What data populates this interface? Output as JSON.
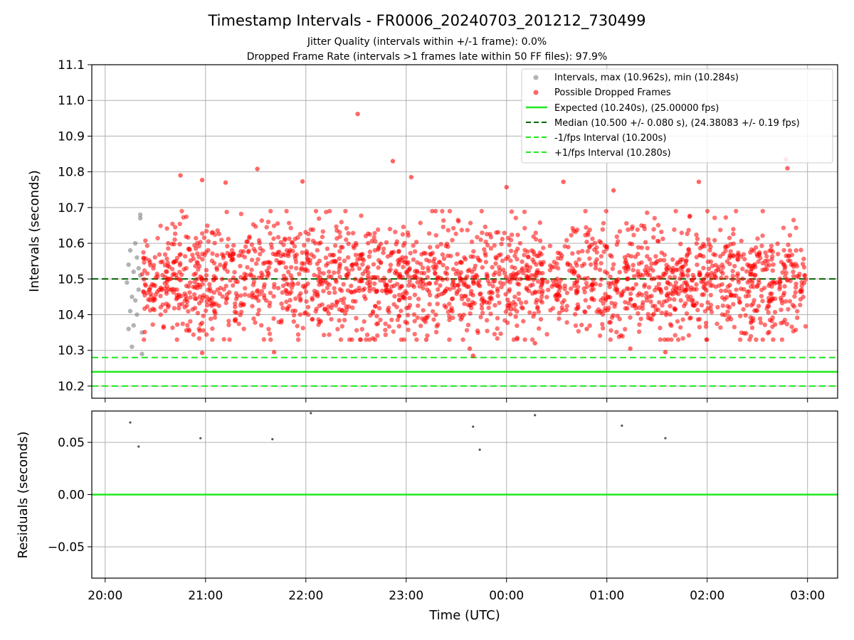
{
  "chart_data": [
    {
      "type": "scatter",
      "title": "Timestamp Intervals - FR0006_20240703_201212_730499",
      "subtitle_lines": [
        "Jitter Quality (intervals within +/-1 frame): 0.0%",
        "Dropped Frame Rate (intervals >1 frames late within 50 FF files): 97.9%"
      ],
      "xlabel": "",
      "ylabel": "Intervals (seconds)",
      "x_axis": {
        "type": "time",
        "range": [
          "2024-07-03 19:52",
          "2024-07-04 03:18"
        ],
        "ticks": [
          "2024-07-03 20:00",
          "2024-07-03 21:00",
          "2024-07-03 22:00",
          "2024-07-03 23:00",
          "2024-07-04 00:00",
          "2024-07-04 01:00",
          "2024-07-04 02:00",
          "2024-07-04 03:00"
        ]
      },
      "ylim": [
        10.166,
        11.1
      ],
      "yticks": [
        "10.2",
        "10.3",
        "10.4",
        "10.5",
        "10.6",
        "10.7",
        "10.8",
        "10.9",
        "11.0",
        "11.1"
      ],
      "grid": true,
      "legend_position": "upper right",
      "series": [
        {
          "name": "Intervals, max (10.962s), min (10.284s)",
          "kind": "scatter",
          "color": "#808080",
          "note_on_points": "grey points are drawn beneath the red points; only those between about 20:12 and 20:22 remain visible",
          "points": [
            [
              "2024-07-03 20:13",
              10.49
            ],
            [
              "2024-07-03 20:14",
              10.54
            ],
            [
              "2024-07-03 20:14",
              10.36
            ],
            [
              "2024-07-03 20:15",
              10.41
            ],
            [
              "2024-07-03 20:15",
              10.58
            ],
            [
              "2024-07-03 20:16",
              10.45
            ],
            [
              "2024-07-03 20:16",
              10.31
            ],
            [
              "2024-07-03 20:17",
              10.52
            ],
            [
              "2024-07-03 20:17",
              10.37
            ],
            [
              "2024-07-03 20:18",
              10.6
            ],
            [
              "2024-07-03 20:18",
              10.44
            ],
            [
              "2024-07-03 20:19",
              10.56
            ],
            [
              "2024-07-03 20:19",
              10.4
            ],
            [
              "2024-07-03 20:20",
              10.47
            ],
            [
              "2024-07-03 20:20",
              10.53
            ],
            [
              "2024-07-03 20:21",
              10.68
            ],
            [
              "2024-07-03 20:21",
              10.67
            ],
            [
              "2024-07-03 20:22",
              10.35
            ],
            [
              "2024-07-03 20:22",
              10.29
            ],
            [
              "2024-07-03 20:21",
              10.51
            ]
          ]
        },
        {
          "name": "Possible Dropped Frames",
          "kind": "scatter",
          "color": "#ff0000",
          "point_count_estimate": 2200,
          "x_range": [
            "2024-07-03 20:22",
            "2024-07-04 02:59"
          ],
          "y_center": 10.5,
          "y_typical_spread": [
            10.33,
            10.69
          ],
          "notable_points": [
            [
              "2024-07-03 22:31",
              10.962
            ],
            [
              "2024-07-03 22:52",
              10.83
            ],
            [
              "2024-07-04 02:47",
              10.835
            ],
            [
              "2024-07-04 02:48",
              10.81
            ],
            [
              "2024-07-03 21:31",
              10.808
            ],
            [
              "2024-07-03 20:45",
              10.79
            ],
            [
              "2024-07-03 23:03",
              10.785
            ],
            [
              "2024-07-03 21:12",
              10.77
            ],
            [
              "2024-07-03 21:58",
              10.773
            ],
            [
              "2024-07-04 00:34",
              10.772
            ],
            [
              "2024-07-04 01:55",
              10.772
            ],
            [
              "2024-07-03 20:58",
              10.777
            ],
            [
              "2024-07-04 01:04",
              10.748
            ],
            [
              "2024-07-04 00:00",
              10.757
            ],
            [
              "2024-07-03 20:58",
              10.293
            ],
            [
              "2024-07-03 21:41",
              10.295
            ],
            [
              "2024-07-04 01:35",
              10.295
            ],
            [
              "2024-07-03 23:40",
              10.285
            ],
            [
              "2024-07-04 01:14",
              10.305
            ],
            [
              "2024-07-03 23:38",
              10.305
            ],
            [
              "2024-07-04 00:17",
              10.32
            ],
            [
              "2024-07-03 23:12",
              10.33
            ],
            [
              "2024-07-04 00:48",
              10.36
            ]
          ]
        },
        {
          "name": "Expected (10.240s), (25.00000 fps)",
          "kind": "hline",
          "y": 10.24,
          "color": "#1ee81e",
          "style": "solid"
        },
        {
          "name": "Median (10.500 +/- 0.080 s), (24.38083 +/- 0.19 fps)",
          "kind": "hline",
          "y": 10.5,
          "color": "#006400",
          "style": "dashed"
        },
        {
          "name": "-1/fps Interval (10.200s)",
          "kind": "hline",
          "y": 10.2,
          "color": "#1ee81e",
          "style": "dashed"
        },
        {
          "name": "+1/fps Interval (10.280s)",
          "kind": "hline",
          "y": 10.28,
          "color": "#1ee81e",
          "style": "dashed"
        }
      ]
    },
    {
      "type": "scatter",
      "title": "",
      "xlabel": "Time (UTC)",
      "ylabel": "Residuals (seconds)",
      "x_axis": {
        "type": "time",
        "range": [
          "2024-07-03 19:52",
          "2024-07-04 03:18"
        ],
        "ticks": [
          "2024-07-03 20:00",
          "2024-07-03 21:00",
          "2024-07-03 22:00",
          "2024-07-03 23:00",
          "2024-07-04 00:00",
          "2024-07-04 01:00",
          "2024-07-04 02:00",
          "2024-07-04 03:00"
        ],
        "tick_labels": [
          "20:00",
          "21:00",
          "22:00",
          "23:00",
          "00:00",
          "01:00",
          "02:00",
          "03:00"
        ]
      },
      "ylim": [
        -0.08,
        0.08
      ],
      "yticks": [
        "−0.05",
        "0.00",
        "0.05"
      ],
      "grid": true,
      "series": [
        {
          "kind": "scatter",
          "color": "#555555",
          "points": [
            [
              "2024-07-03 20:15",
              0.069
            ],
            [
              "2024-07-03 20:20",
              0.046
            ],
            [
              "2024-07-03 20:57",
              0.054
            ],
            [
              "2024-07-03 21:40",
              0.053
            ],
            [
              "2024-07-03 22:03",
              0.078
            ],
            [
              "2024-07-03 23:40",
              0.065
            ],
            [
              "2024-07-03 23:44",
              0.043
            ],
            [
              "2024-07-04 00:17",
              0.076
            ],
            [
              "2024-07-04 01:09",
              0.066
            ],
            [
              "2024-07-04 01:35",
              0.054
            ]
          ]
        },
        {
          "kind": "hline",
          "y": 0.0,
          "color": "#1ee81e",
          "style": "solid"
        }
      ]
    }
  ]
}
